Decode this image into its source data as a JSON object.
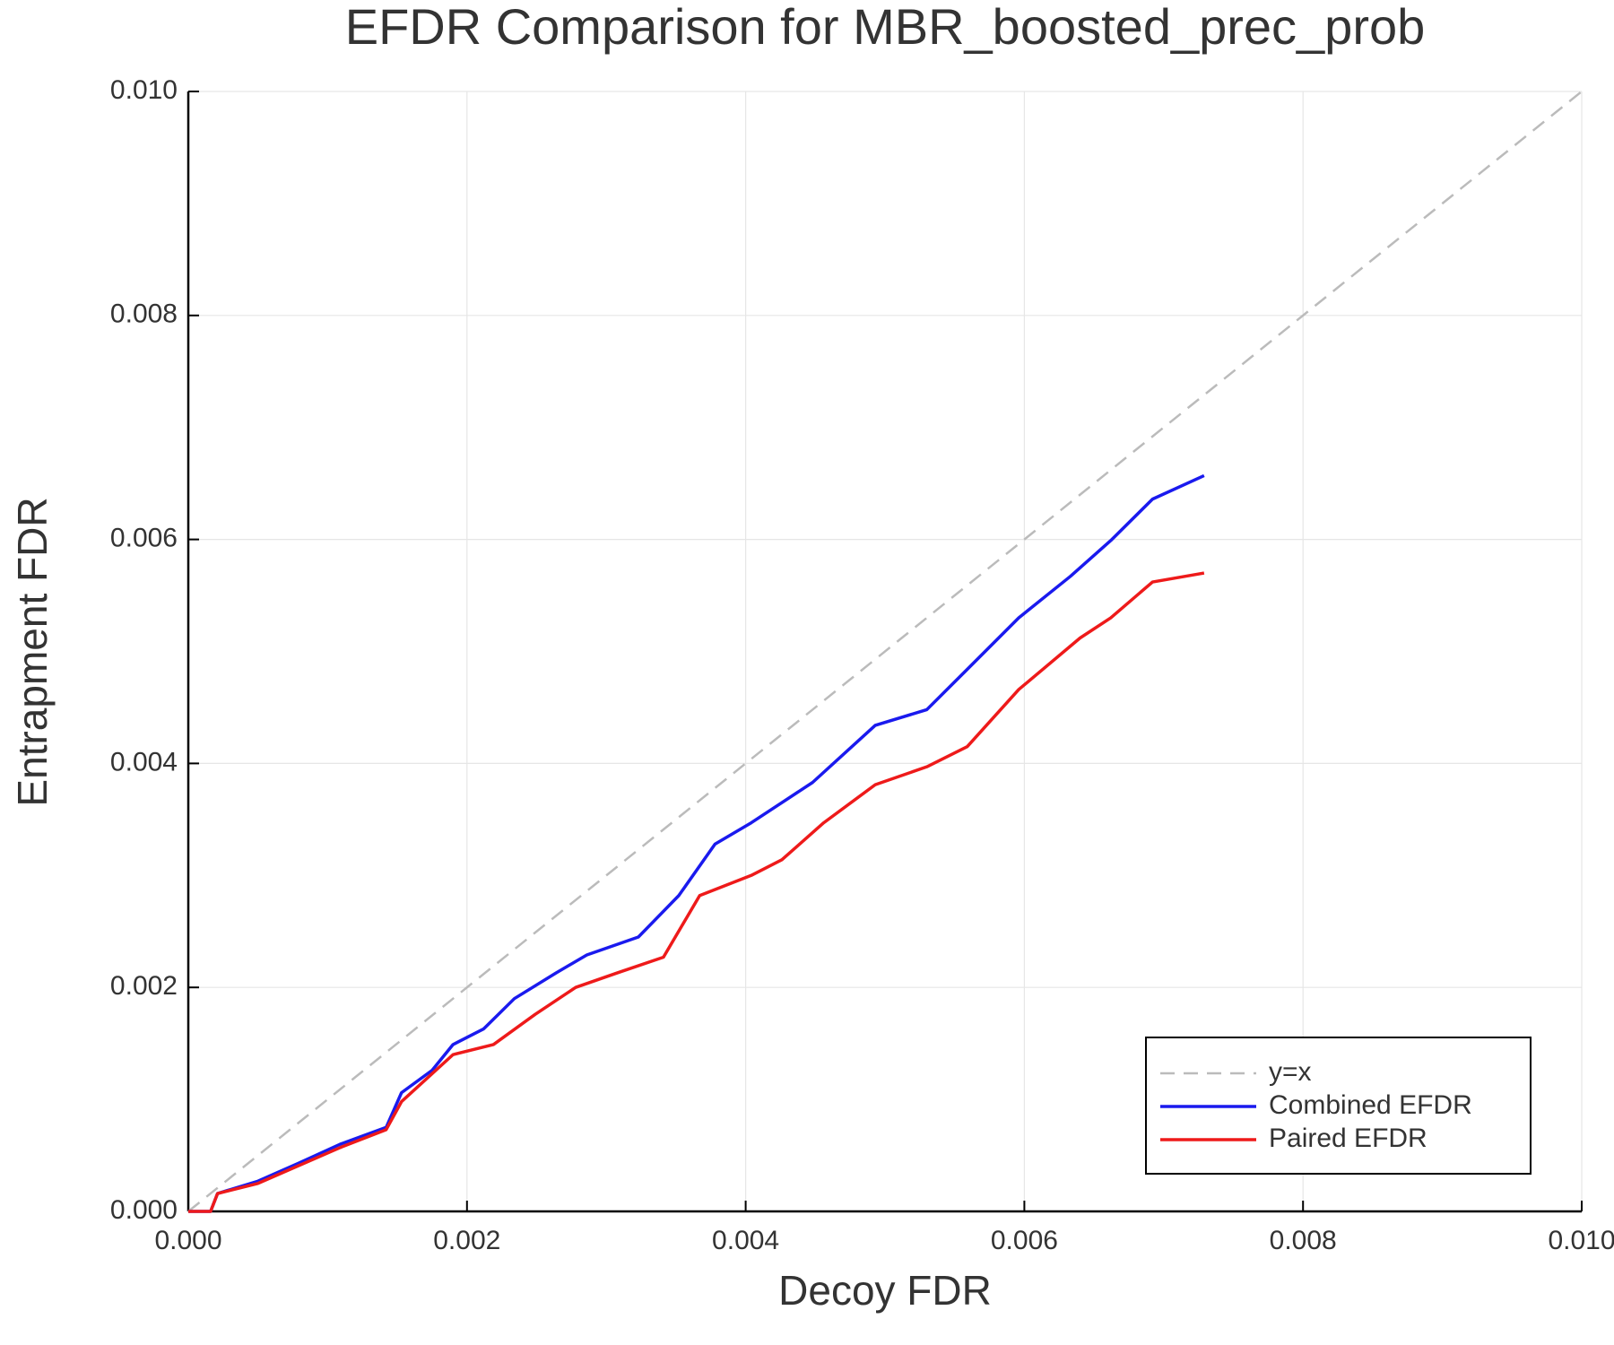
{
  "chart_data": {
    "type": "line",
    "title": "EFDR Comparison for MBR_boosted_prec_prob",
    "x_label": "Decoy FDR",
    "y_label": "Entrapment FDR",
    "xlim": [
      0,
      0.01
    ],
    "ylim": [
      0,
      0.01
    ],
    "xticks": [
      {
        "value": 0,
        "label": "0.000"
      },
      {
        "value": 0.002,
        "label": "0.002"
      },
      {
        "value": 0.004,
        "label": "0.004"
      },
      {
        "value": 0.006,
        "label": "0.006"
      },
      {
        "value": 0.008,
        "label": "0.008"
      },
      {
        "value": 0.01,
        "label": "0.010"
      }
    ],
    "yticks": [
      {
        "value": 0,
        "label": "0.000"
      },
      {
        "value": 0.002,
        "label": "0.002"
      },
      {
        "value": 0.004,
        "label": "0.004"
      },
      {
        "value": 0.006,
        "label": "0.006"
      },
      {
        "value": 0.008,
        "label": "0.008"
      },
      {
        "value": 0.01,
        "label": "0.010"
      }
    ],
    "grid": true,
    "legend": "bottom right",
    "series": [
      {
        "name": "y=x",
        "color": "#bbbbbb",
        "style": "dashed",
        "x": [
          0,
          0.01
        ],
        "values": [
          0,
          0.01
        ]
      },
      {
        "name": "Combined EFDR",
        "color": "#1a1aee",
        "style": "solid",
        "x": [
          0,
          0.00016,
          0.00021,
          0.0005,
          0.00079,
          0.00109,
          0.00142,
          0.00153,
          0.00175,
          0.0019,
          0.00212,
          0.00234,
          0.00264,
          0.00286,
          0.00323,
          0.00352,
          0.00378,
          0.00404,
          0.00448,
          0.00493,
          0.0053,
          0.00559,
          0.00596,
          0.00633,
          0.00662,
          0.00692,
          0.00729
        ],
        "values": [
          0,
          0,
          0.00016,
          0.00027,
          0.00043,
          0.0006,
          0.00075,
          0.00106,
          0.00126,
          0.00149,
          0.00163,
          0.0019,
          0.00213,
          0.00229,
          0.00245,
          0.00282,
          0.00328,
          0.00347,
          0.00383,
          0.00434,
          0.00448,
          0.00484,
          0.0053,
          0.00567,
          0.00599,
          0.00636,
          0.00657
        ]
      },
      {
        "name": "Paired EFDR",
        "color": "#ee1a1a",
        "style": "solid",
        "x": [
          0,
          0.00016,
          0.00021,
          0.0005,
          0.00109,
          0.00142,
          0.00153,
          0.0019,
          0.00219,
          0.00249,
          0.00278,
          0.00308,
          0.00341,
          0.00367,
          0.00404,
          0.00426,
          0.00456,
          0.00493,
          0.0053,
          0.00559,
          0.00596,
          0.0064,
          0.00662,
          0.00692,
          0.00729
        ],
        "values": [
          0,
          0,
          0.00016,
          0.00025,
          0.00057,
          0.00073,
          0.00098,
          0.0014,
          0.00149,
          0.00176,
          0.002,
          0.00213,
          0.00227,
          0.00282,
          0.003,
          0.00314,
          0.00347,
          0.00381,
          0.00397,
          0.00415,
          0.00466,
          0.00512,
          0.0053,
          0.00562,
          0.0057
        ]
      }
    ]
  }
}
